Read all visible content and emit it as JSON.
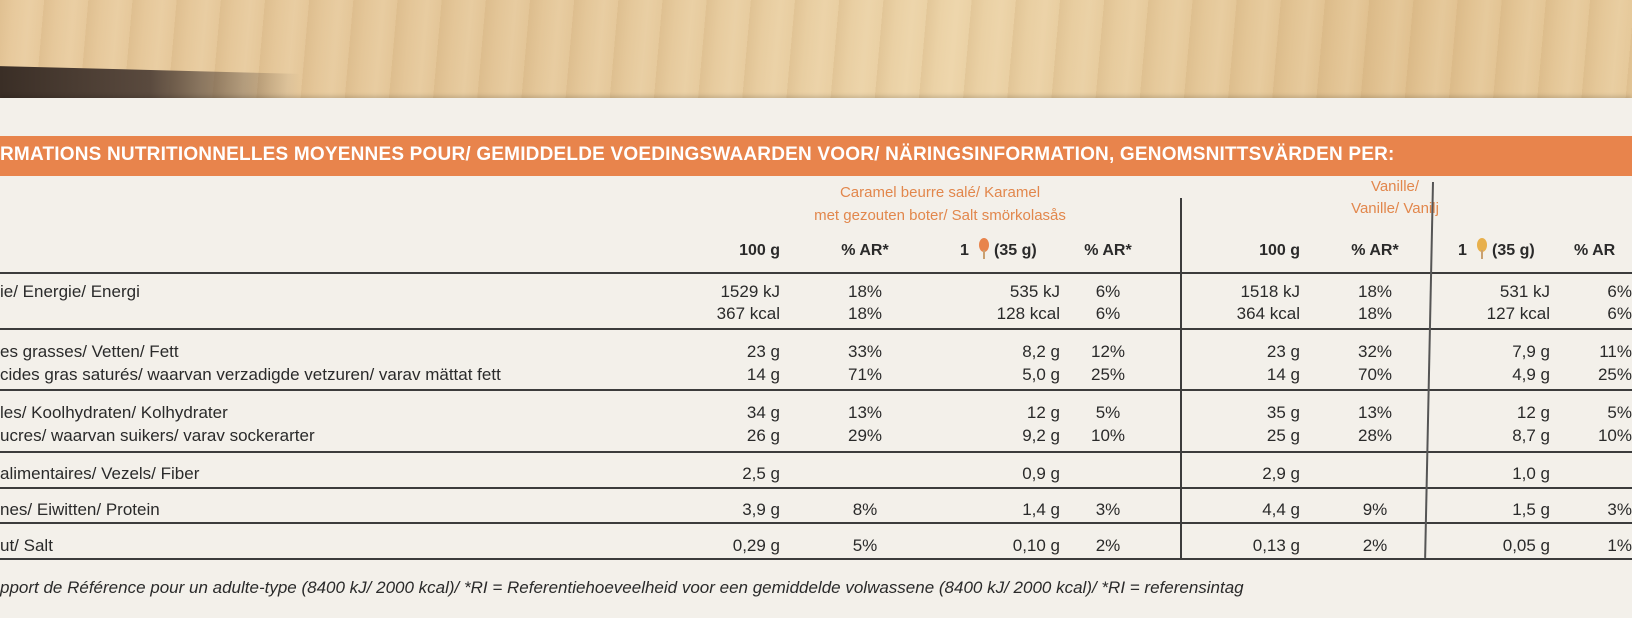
{
  "header_title": "RMATIONS NUTRITIONNELLES MOYENNES POUR/ GEMIDDELDE VOEDINGSWAARDEN VOOR/ NÄRINGSINFORMATION, GENOMSNITTSVÄRDEN PER:",
  "flavors": {
    "caramel": {
      "line1": "Caramel beurre salé/ Karamel",
      "line2": "met gezouten boter/ Salt smörkolasås"
    },
    "vanilla": {
      "line1": "Vanille/",
      "line2": "Vanille/ Vanilj"
    }
  },
  "column_headers": {
    "per100": "100 g",
    "ar": "% AR*",
    "portion_count": "1",
    "portion_weight": "(35 g)",
    "ar_last": "% AR"
  },
  "rows": [
    {
      "label": "ie/ Energie/ Energi",
      "c100": "1529 kJ",
      "car": "18%",
      "cp": "535 kJ",
      "cpar": "6%",
      "v100": "1518 kJ",
      "var": "18%",
      "vp": "531 kJ",
      "vpar": "6%"
    },
    {
      "label": "",
      "c100": "367 kcal",
      "car": "18%",
      "cp": "128 kcal",
      "cpar": "6%",
      "v100": "364 kcal",
      "var": "18%",
      "vp": "127 kcal",
      "vpar": "6%"
    },
    {
      "label": "es grasses/ Vetten/ Fett",
      "c100": "23 g",
      "car": "33%",
      "cp": "8,2 g",
      "cpar": "12%",
      "v100": "23 g",
      "var": "32%",
      "vp": "7,9 g",
      "vpar": "11%"
    },
    {
      "label": "cides gras saturés/ waarvan verzadigde vetzuren/ varav mättat fett",
      "c100": "14 g",
      "car": "71%",
      "cp": "5,0 g",
      "cpar": "25%",
      "v100": "14 g",
      "var": "70%",
      "vp": "4,9 g",
      "vpar": "25%"
    },
    {
      "label": "les/ Koolhydraten/ Kolhydrater",
      "c100": "34 g",
      "car": "13%",
      "cp": "12 g",
      "cpar": "5%",
      "v100": "35 g",
      "var": "13%",
      "vp": "12 g",
      "vpar": "5%"
    },
    {
      "label": "ucres/ waarvan suikers/ varav sockerarter",
      "c100": "26 g",
      "car": "29%",
      "cp": "9,2 g",
      "cpar": "10%",
      "v100": "25 g",
      "var": "28%",
      "vp": "8,7 g",
      "vpar": "10%"
    },
    {
      "label": "alimentaires/ Vezels/ Fiber",
      "c100": "2,5 g",
      "car": "",
      "cp": "0,9 g",
      "cpar": "",
      "v100": "2,9 g",
      "var": "",
      "vp": "1,0 g",
      "vpar": ""
    },
    {
      "label": "nes/ Eiwitten/ Protein",
      "c100": "3,9 g",
      "car": "8%",
      "cp": "1,4 g",
      "cpar": "3%",
      "v100": "4,4 g",
      "var": "9%",
      "vp": "1,5 g",
      "vpar": "3%"
    },
    {
      "label": "ut/ Salt",
      "c100": "0,29 g",
      "car": "5%",
      "cp": "0,10 g",
      "cpar": "2%",
      "v100": "0,13 g",
      "var": "2%",
      "vp": "0,05 g",
      "vpar": "1%"
    }
  ],
  "footnote": "pport de Référence pour un adulte-type (8400 kJ/ 2000 kcal)/ *RI = Referentiehoeveelheid voor een gemiddelde volwassene (8400 kJ/ 2000 kcal)/ *RI = referensintag",
  "colors": {
    "banner": "#e8844c",
    "flavor_text": "#e2874c",
    "text": "#2a2a2a"
  }
}
